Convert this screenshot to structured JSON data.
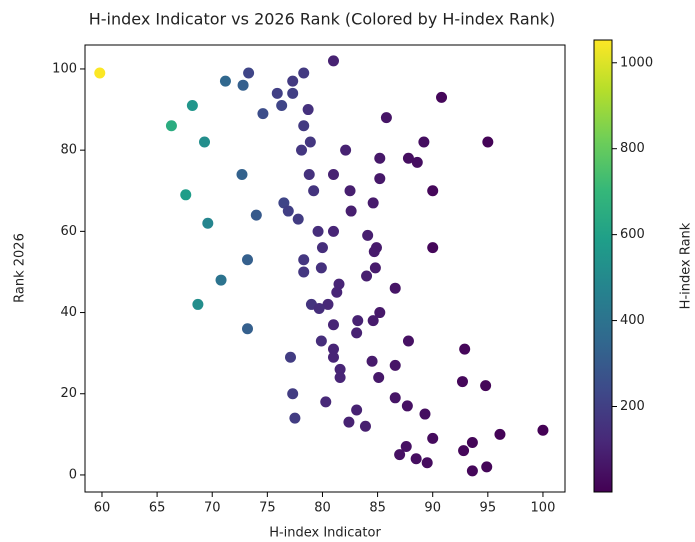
{
  "chart_data": {
    "type": "scatter",
    "title": "H-index Indicator vs 2026 Rank (Colored by H-index Rank)",
    "x_label": "H-index Indicator",
    "y_label": "Rank 2026",
    "colorbar_label": "H-index Rank",
    "colormap": "viridis",
    "x": [
      59.8,
      71.2,
      73.3,
      72.8,
      68.2,
      66.3,
      69.3,
      74.6,
      75.9,
      76.3,
      77.3,
      77.3,
      78.3,
      81,
      78.7,
      78.3,
      78.9,
      78.1,
      85.8,
      90.8,
      95,
      89.2,
      82.1,
      85.2,
      87.8,
      88.6,
      72.7,
      78.8,
      81,
      67.6,
      79.2,
      82.5,
      85.2,
      90,
      84.6,
      76.5,
      76.9,
      82.6,
      74,
      77.8,
      69.6,
      79.6,
      81,
      84.1,
      80,
      84.9,
      84.7,
      90,
      73.2,
      78.3,
      79.9,
      84.8,
      78.3,
      70.8,
      81.5,
      86.6,
      81.3,
      84,
      68.7,
      79,
      80.5,
      79.7,
      85.2,
      83.2,
      84.6,
      81,
      73.2,
      83.1,
      87.8,
      79.9,
      81,
      92.9,
      77.1,
      81,
      84.5,
      86.6,
      81.6,
      81.6,
      85.1,
      92.7,
      94.8,
      77.3,
      86.6,
      80.3,
      87.7,
      89.3,
      83.1,
      77.5,
      82.4,
      83.9,
      100,
      96.1,
      90,
      93.6,
      87.6,
      92.8,
      87,
      88.5,
      89.5,
      94.9,
      93.6
    ],
    "y": [
      99,
      97,
      99,
      96,
      91,
      86,
      82,
      89,
      94,
      91,
      97,
      94,
      99,
      102,
      90,
      86,
      82,
      80,
      88,
      93,
      82,
      82,
      80,
      78,
      78,
      77,
      74,
      74,
      74,
      69,
      70,
      70,
      73,
      70,
      67,
      67,
      65,
      65,
      64,
      63,
      62,
      60,
      60,
      59,
      56,
      56,
      55,
      56,
      53,
      53,
      51,
      51,
      50,
      48,
      47,
      46,
      45,
      49,
      42,
      42,
      42,
      41,
      40,
      38,
      38,
      37,
      36,
      35,
      33,
      33,
      31,
      31,
      29,
      29,
      28,
      27,
      26,
      24,
      24,
      23,
      22,
      20,
      19,
      18,
      17,
      15,
      16,
      14,
      13,
      12,
      11,
      10,
      9,
      8,
      7,
      6,
      5,
      4,
      3,
      2,
      1
    ],
    "color_values": [
      1050,
      350,
      220,
      320,
      550,
      650,
      520,
      250,
      200,
      220,
      180,
      200,
      180,
      100,
      150,
      180,
      170,
      170,
      60,
      20,
      10,
      40,
      100,
      70,
      40,
      40,
      330,
      150,
      100,
      580,
      160,
      90,
      70,
      20,
      80,
      220,
      200,
      90,
      300,
      190,
      480,
      140,
      110,
      90,
      140,
      80,
      80,
      20,
      320,
      170,
      150,
      80,
      170,
      400,
      110,
      60,
      110,
      90,
      520,
      160,
      120,
      140,
      70,
      100,
      80,
      110,
      320,
      100,
      50,
      140,
      110,
      20,
      190,
      110,
      80,
      60,
      110,
      110,
      70,
      20,
      15,
      190,
      60,
      120,
      50,
      40,
      100,
      190,
      100,
      90,
      5,
      10,
      30,
      15,
      50,
      20,
      50,
      40,
      35,
      15,
      20
    ],
    "xlim": [
      58.46,
      102.0
    ],
    "ylim": [
      -4.2,
      105.9
    ],
    "clim": [
      1,
      1053
    ],
    "xticks": [
      60,
      65,
      70,
      75,
      80,
      85,
      90,
      95,
      100
    ],
    "yticks": [
      0,
      20,
      40,
      60,
      80,
      100
    ],
    "cticks": [
      200,
      400,
      600,
      800,
      1000
    ]
  }
}
